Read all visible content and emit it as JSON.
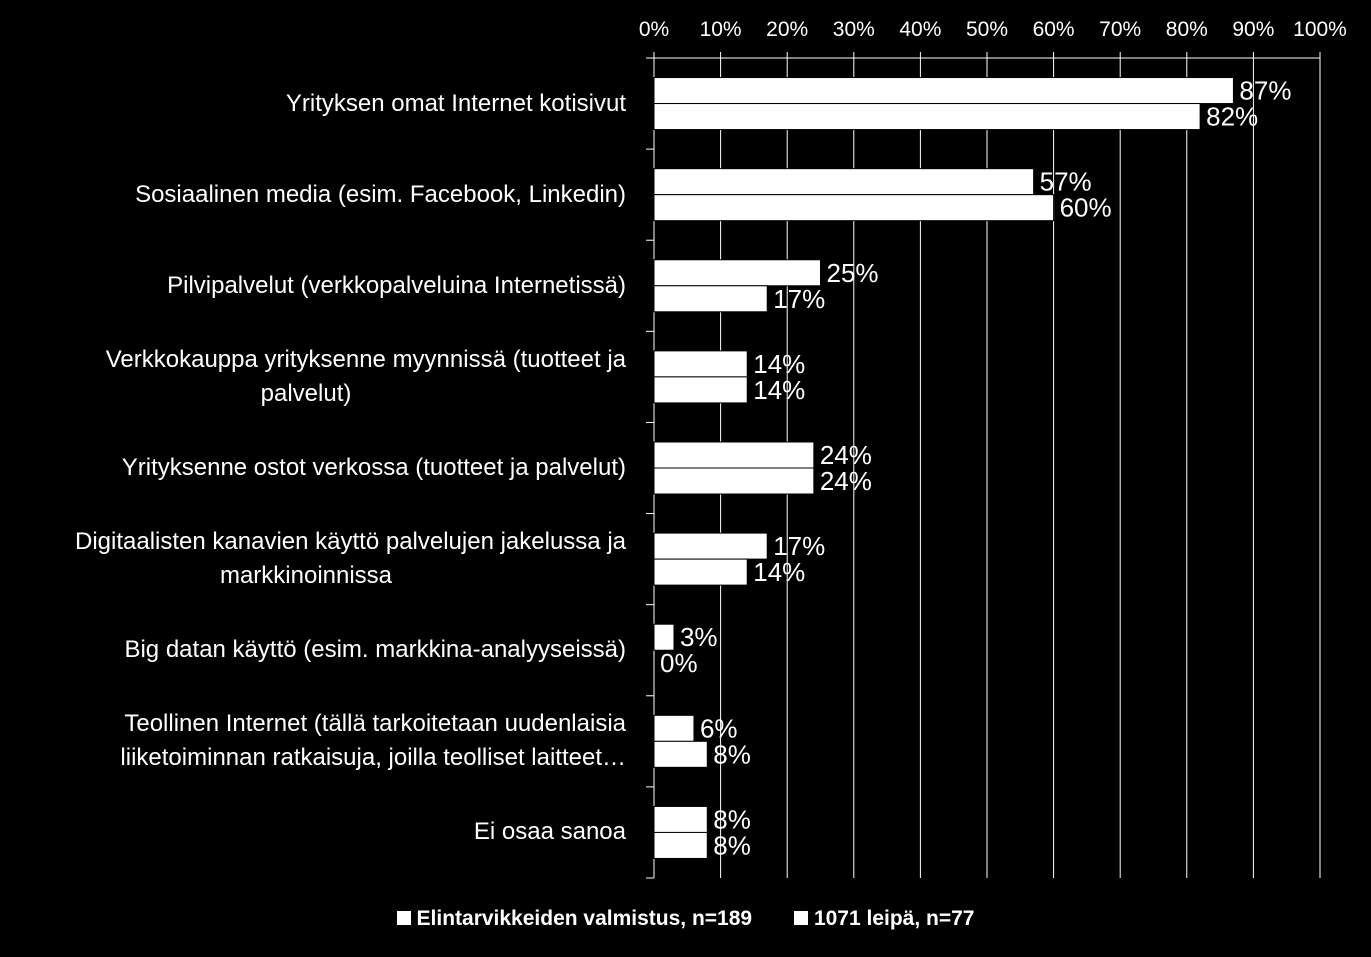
{
  "chart_data": {
    "type": "bar",
    "orientation": "horizontal",
    "xlim": [
      0,
      100
    ],
    "x_ticks": [
      "0%",
      "10%",
      "20%",
      "30%",
      "40%",
      "50%",
      "60%",
      "70%",
      "80%",
      "90%",
      "100%"
    ],
    "grid": "vertical",
    "legend_position": "bottom",
    "categories": [
      "Yrityksen omat Internet kotisivut",
      "Sosiaalinen media (esim. Facebook, Linkedin)",
      "Pilvipalvelut  (verkkopalveluina Internetissä)",
      "Verkkokauppa yrityksenne myynnissä (tuotteet ja palvelut)",
      "Yrityksenne ostot verkossa (tuotteet ja palvelut)",
      "Digitaalisten kanavien käyttö palvelujen jakelussa ja markkinoinnissa",
      "Big datan käyttö (esim. markkina-analyyseissä)",
      "Teollinen Internet (tällä tarkoitetaan uudenlaisia liiketoiminnan ratkaisuja, joilla teolliset laitteet…",
      "Ei osaa sanoa"
    ],
    "category_lines": [
      [
        "Yrityksen omat Internet kotisivut"
      ],
      [
        "Sosiaalinen media (esim. Facebook, Linkedin)"
      ],
      [
        "Pilvipalvelut  (verkkopalveluina Internetissä)"
      ],
      [
        "Verkkokauppa yrityksenne myynnissä (tuotteet ja",
        "palvelut)"
      ],
      [
        "Yrityksenne ostot verkossa (tuotteet ja palvelut)"
      ],
      [
        "Digitaalisten kanavien käyttö palvelujen jakelussa ja",
        "markkinoinnissa"
      ],
      [
        "Big datan käyttö (esim. markkina-analyyseissä)"
      ],
      [
        "Teollinen Internet (tällä tarkoitetaan uudenlaisia",
        "liiketoiminnan ratkaisuja, joilla teolliset laitteet…"
      ],
      [
        "Ei osaa sanoa"
      ]
    ],
    "series": [
      {
        "name": "Elintarvikkeiden valmistus, n=189",
        "values": [
          87,
          57,
          25,
          14,
          24,
          17,
          3,
          6,
          8
        ],
        "color": "#ffffff"
      },
      {
        "name": "1071 leipä, n=77",
        "values": [
          82,
          60,
          17,
          14,
          24,
          14,
          0,
          8,
          8
        ],
        "color": "#ffffff"
      }
    ],
    "value_suffix": "%"
  }
}
